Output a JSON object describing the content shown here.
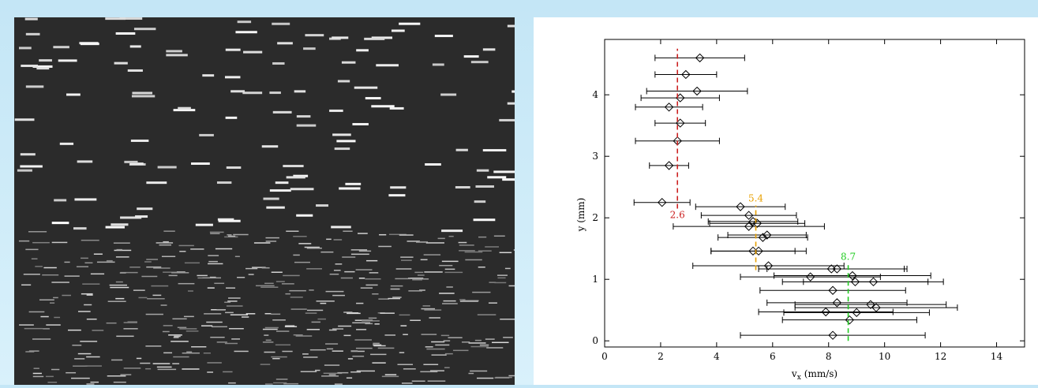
{
  "chart_data": {
    "type": "scatter",
    "xlabel": "v",
    "xlabel_sub": "x",
    "xlabel_unit": "(mm/s)",
    "ylabel": "y (mm)",
    "xlim": [
      0,
      15
    ],
    "ylim": [
      -0.1,
      4.9
    ],
    "xticks": [
      0,
      2,
      4,
      6,
      8,
      10,
      12,
      14
    ],
    "yticks": [
      0,
      1,
      2,
      3,
      4
    ],
    "series": [
      {
        "color": "#000000",
        "x": [
          3.4,
          2.9,
          3.3,
          2.7,
          2.3,
          2.7,
          2.6,
          2.3,
          2.05,
          4.85,
          5.15,
          5.3,
          5.45,
          5.15,
          5.65,
          5.8,
          5.3,
          5.5,
          5.85,
          7.35,
          8.1,
          8.3,
          8.85,
          8.95,
          9.6,
          8.15,
          8.3,
          9.5,
          9.7,
          7.9,
          9.0,
          8.75,
          8.15
        ],
        "y": [
          4.6,
          4.33,
          4.06,
          3.95,
          3.8,
          3.54,
          3.25,
          2.85,
          2.25,
          2.18,
          2.04,
          1.94,
          1.91,
          1.86,
          1.68,
          1.72,
          1.46,
          1.46,
          1.22,
          1.04,
          1.17,
          1.17,
          1.06,
          0.96,
          0.96,
          0.82,
          0.62,
          0.59,
          0.54,
          0.47,
          0.46,
          0.34,
          0.09
        ],
        "xerr": [
          1.6,
          1.1,
          1.8,
          1.4,
          1.2,
          0.9,
          1.5,
          0.7,
          1.0,
          1.6,
          1.7,
          1.6,
          1.7,
          2.7,
          1.6,
          1.4,
          1.5,
          1.7,
          2.7,
          2.5,
          2.6,
          2.5,
          2.8,
          2.6,
          2.5,
          2.6,
          2.5,
          2.7,
          2.9,
          2.4,
          2.6,
          2.4,
          3.3
        ]
      }
    ],
    "ref_lines": [
      {
        "x": 2.6,
        "ymin": 2.15,
        "ymax": 4.75,
        "color": "#cc2222",
        "label_pos": "below"
      },
      {
        "x": 5.4,
        "ymin": 1.15,
        "ymax": 2.2,
        "color": "#e8a000",
        "label_pos": "above"
      },
      {
        "x": 8.7,
        "ymin": 0.0,
        "ymax": 1.25,
        "color": "#22cc22",
        "label_pos": "above"
      }
    ]
  }
}
